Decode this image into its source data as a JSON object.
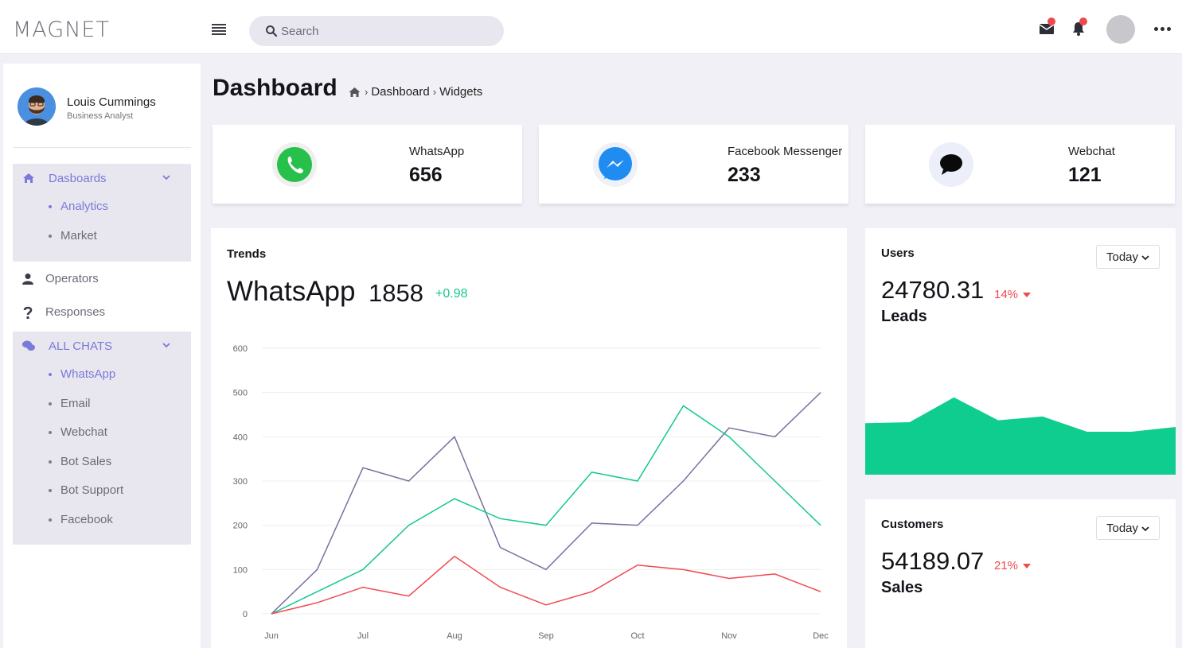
{
  "app": {
    "logo": "MAGNET",
    "search_placeholder": "Search"
  },
  "colors": {
    "accent": "#7a7ad8",
    "green": "#15c98e",
    "red": "#f0484f",
    "purple_line": "#76729e"
  },
  "profile": {
    "name": "Louis Cummings",
    "role": "Business Analyst"
  },
  "sidebar": {
    "dashboards": {
      "label": "Dasboards",
      "icon": "home-icon",
      "items": [
        {
          "label": "Analytics",
          "active": true
        },
        {
          "label": "Market",
          "active": false
        }
      ]
    },
    "operators": {
      "label": "Operators",
      "icon": "user-icon"
    },
    "responses": {
      "label": "Responses",
      "icon": "question-icon"
    },
    "chats": {
      "label": "ALL CHATS",
      "icon": "chat-bubbles-icon",
      "items": [
        {
          "label": "WhatsApp",
          "active": true
        },
        {
          "label": "Email",
          "active": false
        },
        {
          "label": "Webchat",
          "active": false
        },
        {
          "label": "Bot Sales",
          "active": false
        },
        {
          "label": "Bot Support",
          "active": false
        },
        {
          "label": "Facebook",
          "active": false
        }
      ]
    }
  },
  "page": {
    "title": "Dashboard",
    "breadcrumb": [
      "Dashboard",
      "Widgets"
    ]
  },
  "stats": [
    {
      "label": "WhatsApp",
      "value": "656",
      "icon": "whatsapp-icon"
    },
    {
      "label": "Facebook Messenger",
      "value": "233",
      "icon": "messenger-icon"
    },
    {
      "label": "Webchat",
      "value": "121",
      "icon": "chat-icon"
    }
  ],
  "trends": {
    "title": "Trends",
    "channel": "WhatsApp",
    "total": "1858",
    "change": "+0.98"
  },
  "chart_data": {
    "type": "line",
    "x": [
      "Jun",
      "",
      "Jul",
      "",
      "Aug",
      "",
      "Sep",
      "",
      "Oct",
      "",
      "Nov",
      "",
      "Dec"
    ],
    "x_tick_labels": [
      "Jun",
      "Jul",
      "Aug",
      "Sep",
      "Oct",
      "Nov",
      "Dec"
    ],
    "series": [
      {
        "color": "#76729e",
        "values": [
          0,
          100,
          330,
          300,
          400,
          150,
          100,
          205,
          200,
          300,
          420,
          400,
          500
        ]
      },
      {
        "color": "#15c98e",
        "values": [
          0,
          50,
          100,
          200,
          260,
          215,
          200,
          320,
          300,
          470,
          400,
          300,
          200
        ]
      },
      {
        "color": "#f0484f",
        "values": [
          0,
          25,
          60,
          40,
          130,
          60,
          20,
          50,
          110,
          100,
          80,
          90,
          50
        ]
      }
    ],
    "ylim": [
      0,
      600
    ],
    "y_ticks": [
      0,
      100,
      200,
      300,
      400,
      500,
      600
    ],
    "grid": true,
    "legend": "none"
  },
  "users_card": {
    "title": "Users",
    "period": "Today",
    "amount": "24780.31",
    "percent": "14%",
    "label": "Leads",
    "area_values": [
      54,
      55,
      81,
      57,
      61,
      45,
      45,
      50
    ],
    "area_color": "#0fcd8f"
  },
  "customers_card": {
    "title": "Customers",
    "period": "Today",
    "amount": "54189.07",
    "percent": "21%",
    "label": "Sales"
  }
}
